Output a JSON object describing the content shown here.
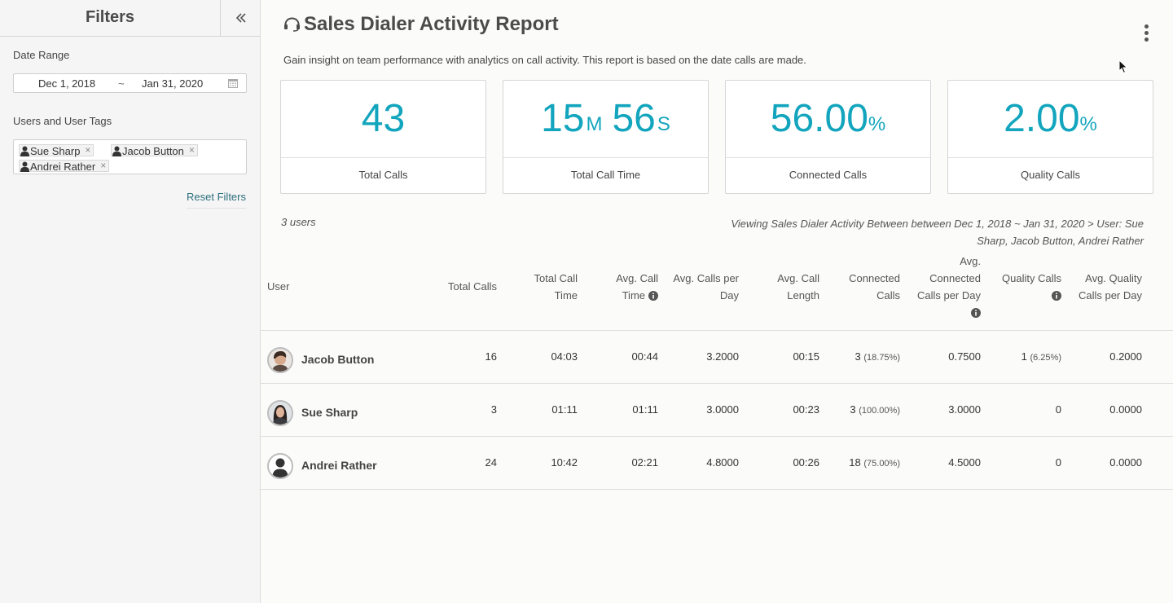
{
  "sidebar": {
    "title": "Filters",
    "date_range_label": "Date Range",
    "date_start": "Dec 1, 2018",
    "date_separator": "~",
    "date_end": "Jan 31, 2020",
    "users_label": "Users and User Tags",
    "tags": [
      "Sue Sharp",
      "Jacob Button",
      "Andrei Rather"
    ],
    "tag_remove": "×",
    "reset_label": "Reset Filters"
  },
  "header": {
    "title": "Sales Dialer Activity Report",
    "subtitle": "Gain insight on team performance with analytics on call activity. This report is based on the date calls are made."
  },
  "cards": {
    "total_calls": {
      "value": "43",
      "label": "Total Calls"
    },
    "total_call_time": {
      "minutes": "15",
      "minutes_unit": "M",
      "seconds": "56",
      "seconds_unit": "S",
      "label": "Total Call Time"
    },
    "connected_calls": {
      "value": "56.00",
      "unit": "%",
      "label": "Connected Calls"
    },
    "quality_calls": {
      "value": "2.00",
      "unit": "%",
      "label": "Quality Calls"
    }
  },
  "summary": {
    "user_count": "3 users",
    "viewing_line1": "Viewing Sales Dialer Activity Between between Dec 1, 2018 ~ Jan 31, 2020 > User: Sue",
    "viewing_line2": "Sharp, Jacob Button, Andrei Rather"
  },
  "table": {
    "headers": {
      "user": "User",
      "total_calls": "Total Calls",
      "total_call_time_1": "Total Call",
      "total_call_time_2": "Time",
      "avg_call_time_1": "Avg. Call",
      "avg_call_time_2": "Time",
      "avg_calls_per_day_1": "Avg. Calls per",
      "avg_calls_per_day_2": "Day",
      "avg_call_length_1": "Avg. Call",
      "avg_call_length_2": "Length",
      "connected_calls_1": "Connected",
      "connected_calls_2": "Calls",
      "avg_connected_1": "Avg.",
      "avg_connected_2": "Connected",
      "avg_connected_3": "Calls per Day",
      "quality_calls": "Quality Calls",
      "avg_quality_1": "Avg. Quality",
      "avg_quality_2": "Calls per Day"
    },
    "rows": [
      {
        "name": "Jacob Button",
        "total_calls": "16",
        "total_call_time": "04:03",
        "avg_call_time": "00:44",
        "avg_calls_per_day": "3.2000",
        "avg_call_length": "00:15",
        "connected": "3",
        "connected_pct": "(18.75%)",
        "avg_connected_per_day": "0.7500",
        "quality": "1",
        "quality_pct": "(6.25%)",
        "avg_quality_per_day": "0.2000"
      },
      {
        "name": "Sue Sharp",
        "total_calls": "3",
        "total_call_time": "01:11",
        "avg_call_time": "01:11",
        "avg_calls_per_day": "3.0000",
        "avg_call_length": "00:23",
        "connected": "3",
        "connected_pct": "(100.00%)",
        "avg_connected_per_day": "3.0000",
        "quality": "0",
        "quality_pct": "",
        "avg_quality_per_day": "0.0000"
      },
      {
        "name": "Andrei Rather",
        "total_calls": "24",
        "total_call_time": "10:42",
        "avg_call_time": "02:21",
        "avg_calls_per_day": "4.8000",
        "avg_call_length": "00:26",
        "connected": "18",
        "connected_pct": "(75.00%)",
        "avg_connected_per_day": "4.5000",
        "quality": "0",
        "quality_pct": "",
        "avg_quality_per_day": "0.0000"
      }
    ]
  },
  "colors": {
    "accent": "#12a5bd",
    "link": "#2b6e7c",
    "sidebar_bg": "#f5f5f5"
  },
  "icons": [
    "chevrons-left-icon",
    "calendar-icon",
    "user-icon",
    "headset-icon",
    "more-vertical-icon",
    "info-icon",
    "cursor-icon"
  ]
}
